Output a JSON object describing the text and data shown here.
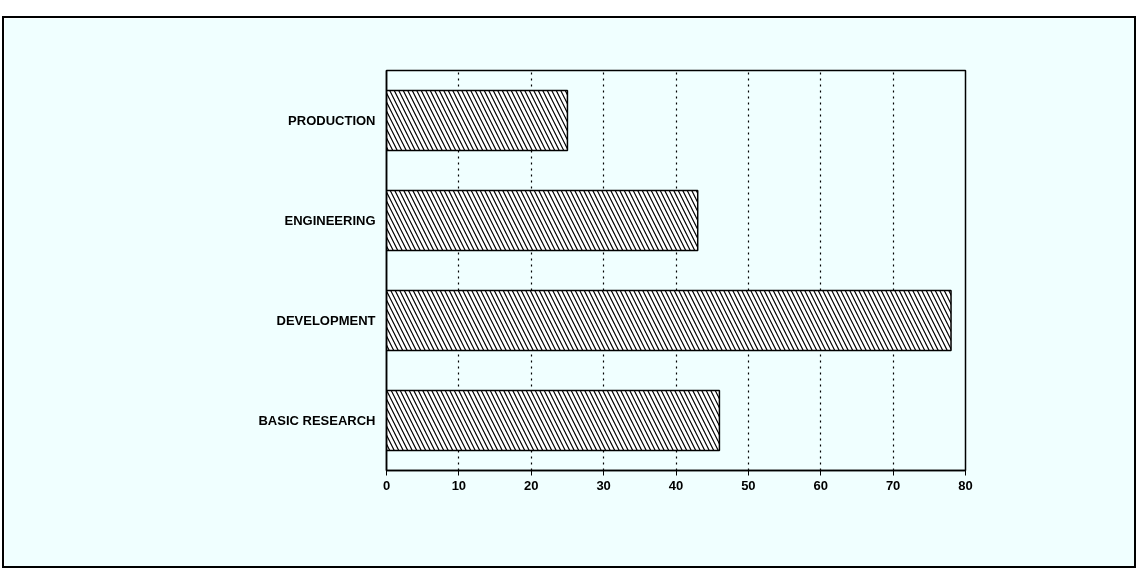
{
  "chart_data": {
    "type": "bar",
    "orientation": "horizontal",
    "categories": [
      "PRODUCTION",
      "ENGINEERING",
      "DEVELOPMENT",
      "BASIC RESEARCH"
    ],
    "values": [
      25,
      43,
      78,
      46
    ],
    "color": "#000000",
    "xlim": [
      0,
      80
    ],
    "xticks": [
      0,
      10,
      20,
      30,
      40,
      50,
      60,
      70,
      80
    ],
    "grid": "x"
  }
}
